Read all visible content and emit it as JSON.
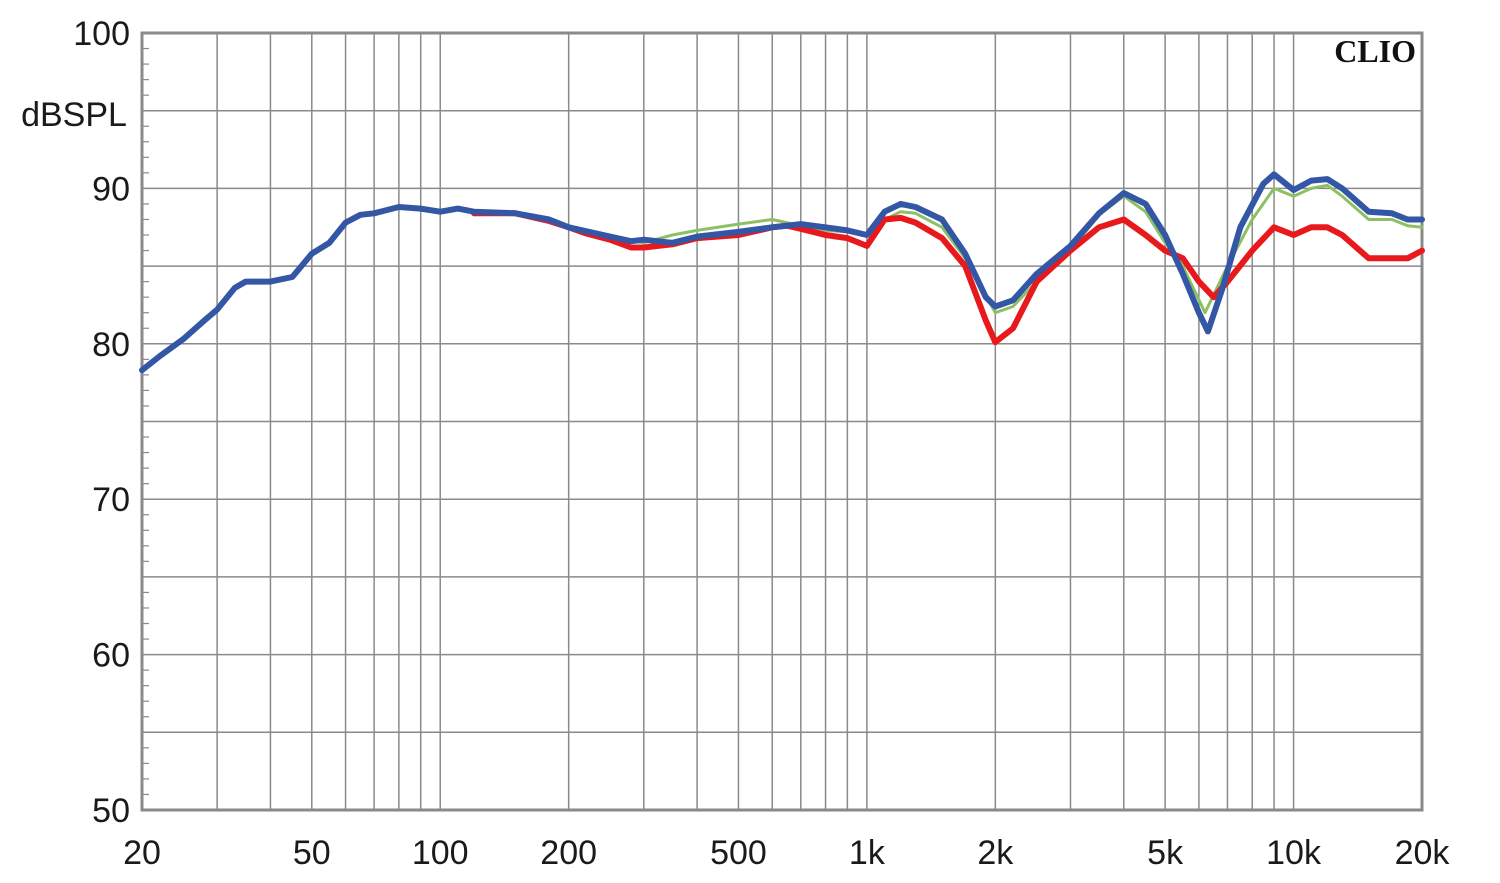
{
  "chart_data": {
    "type": "line",
    "title": "",
    "brand_label": "CLIO",
    "xlabel": "",
    "ylabel": "dBSPL",
    "x_scale": "log",
    "xlim": [
      20,
      20000
    ],
    "ylim": [
      50,
      100
    ],
    "grid": true,
    "legend": "none",
    "x_ticks": [
      {
        "value": 20,
        "label": "20"
      },
      {
        "value": 50,
        "label": "50"
      },
      {
        "value": 100,
        "label": "100"
      },
      {
        "value": 200,
        "label": "200"
      },
      {
        "value": 500,
        "label": "500"
      },
      {
        "value": 1000,
        "label": "1k"
      },
      {
        "value": 2000,
        "label": "2k"
      },
      {
        "value": 5000,
        "label": "5k"
      },
      {
        "value": 10000,
        "label": "10k"
      },
      {
        "value": 20000,
        "label": "20k"
      }
    ],
    "y_ticks": [
      {
        "value": 100,
        "label": "100"
      },
      {
        "value": 90,
        "label": "90"
      },
      {
        "value": 80,
        "label": "80"
      },
      {
        "value": 70,
        "label": "70"
      },
      {
        "value": 60,
        "label": "60"
      },
      {
        "value": 50,
        "label": "50"
      }
    ],
    "series": [
      {
        "color": "#8dc063",
        "width": 3,
        "points": [
          [
            120,
            88.3
          ],
          [
            150,
            88.4
          ],
          [
            180,
            88.0
          ],
          [
            200,
            87.5
          ],
          [
            250,
            86.9
          ],
          [
            300,
            86.5
          ],
          [
            350,
            87.0
          ],
          [
            400,
            87.3
          ],
          [
            500,
            87.7
          ],
          [
            600,
            88.0
          ],
          [
            700,
            87.6
          ],
          [
            800,
            87.3
          ],
          [
            900,
            87.2
          ],
          [
            1000,
            87.1
          ],
          [
            1100,
            88.0
          ],
          [
            1200,
            88.5
          ],
          [
            1300,
            88.4
          ],
          [
            1500,
            87.5
          ],
          [
            1700,
            85.5
          ],
          [
            2000,
            82.0
          ],
          [
            2200,
            82.4
          ],
          [
            2500,
            84.0
          ],
          [
            3000,
            86.0
          ],
          [
            3500,
            88.3
          ],
          [
            4000,
            89.5
          ],
          [
            4500,
            88.5
          ],
          [
            5000,
            86.5
          ],
          [
            5500,
            85.0
          ],
          [
            6200,
            82.0
          ],
          [
            7000,
            85.0
          ],
          [
            8000,
            88.0
          ],
          [
            9000,
            90.0
          ],
          [
            10000,
            89.5
          ],
          [
            11000,
            90.0
          ],
          [
            12000,
            90.2
          ],
          [
            13000,
            89.5
          ],
          [
            15000,
            88.0
          ],
          [
            17000,
            88.0
          ],
          [
            18500,
            87.6
          ],
          [
            20000,
            87.5
          ]
        ]
      },
      {
        "color": "#e8191d",
        "width": 6,
        "points": [
          [
            120,
            88.4
          ],
          [
            150,
            88.4
          ],
          [
            180,
            87.9
          ],
          [
            200,
            87.5
          ],
          [
            220,
            87.1
          ],
          [
            250,
            86.7
          ],
          [
            280,
            86.2
          ],
          [
            300,
            86.2
          ],
          [
            350,
            86.4
          ],
          [
            400,
            86.8
          ],
          [
            500,
            87.0
          ],
          [
            600,
            87.5
          ],
          [
            650,
            87.6
          ],
          [
            700,
            87.4
          ],
          [
            800,
            87.0
          ],
          [
            900,
            86.8
          ],
          [
            1000,
            86.3
          ],
          [
            1100,
            88.0
          ],
          [
            1200,
            88.1
          ],
          [
            1300,
            87.8
          ],
          [
            1500,
            86.8
          ],
          [
            1700,
            85.0
          ],
          [
            1900,
            81.5
          ],
          [
            2000,
            80.1
          ],
          [
            2200,
            81.0
          ],
          [
            2500,
            84.0
          ],
          [
            3000,
            86.0
          ],
          [
            3500,
            87.5
          ],
          [
            4000,
            88.0
          ],
          [
            4500,
            87.0
          ],
          [
            5000,
            86.0
          ],
          [
            5500,
            85.5
          ],
          [
            6000,
            84.0
          ],
          [
            6500,
            83.0
          ],
          [
            7000,
            84.0
          ],
          [
            8000,
            86.0
          ],
          [
            9000,
            87.5
          ],
          [
            10000,
            87.0
          ],
          [
            11000,
            87.5
          ],
          [
            12000,
            87.5
          ],
          [
            13000,
            87.0
          ],
          [
            15000,
            85.5
          ],
          [
            17000,
            85.5
          ],
          [
            18500,
            85.5
          ],
          [
            20000,
            86.0
          ]
        ]
      },
      {
        "color": "#3457a5",
        "width": 6,
        "points": [
          [
            20,
            78.3
          ],
          [
            22,
            79.2
          ],
          [
            25,
            80.3
          ],
          [
            28,
            81.5
          ],
          [
            30,
            82.2
          ],
          [
            33,
            83.6
          ],
          [
            35,
            84.0
          ],
          [
            40,
            84.0
          ],
          [
            45,
            84.3
          ],
          [
            50,
            85.8
          ],
          [
            55,
            86.5
          ],
          [
            60,
            87.8
          ],
          [
            65,
            88.3
          ],
          [
            70,
            88.4
          ],
          [
            80,
            88.8
          ],
          [
            90,
            88.7
          ],
          [
            100,
            88.5
          ],
          [
            110,
            88.7
          ],
          [
            120,
            88.5
          ],
          [
            150,
            88.4
          ],
          [
            180,
            88.0
          ],
          [
            200,
            87.5
          ],
          [
            250,
            86.9
          ],
          [
            280,
            86.6
          ],
          [
            300,
            86.7
          ],
          [
            350,
            86.5
          ],
          [
            400,
            86.9
          ],
          [
            500,
            87.2
          ],
          [
            600,
            87.5
          ],
          [
            700,
            87.7
          ],
          [
            800,
            87.5
          ],
          [
            900,
            87.3
          ],
          [
            1000,
            87.0
          ],
          [
            1100,
            88.5
          ],
          [
            1200,
            89.0
          ],
          [
            1300,
            88.8
          ],
          [
            1500,
            88.0
          ],
          [
            1700,
            85.8
          ],
          [
            1900,
            83.0
          ],
          [
            2000,
            82.4
          ],
          [
            2200,
            82.8
          ],
          [
            2500,
            84.5
          ],
          [
            3000,
            86.3
          ],
          [
            3500,
            88.4
          ],
          [
            4000,
            89.7
          ],
          [
            4500,
            89.0
          ],
          [
            5000,
            87.0
          ],
          [
            5500,
            84.5
          ],
          [
            6000,
            82.0
          ],
          [
            6300,
            80.8
          ],
          [
            6800,
            83.5
          ],
          [
            7500,
            87.5
          ],
          [
            8500,
            90.3
          ],
          [
            9000,
            90.9
          ],
          [
            10000,
            89.9
          ],
          [
            11000,
            90.5
          ],
          [
            12000,
            90.6
          ],
          [
            13000,
            90.0
          ],
          [
            15000,
            88.5
          ],
          [
            17000,
            88.4
          ],
          [
            18500,
            88.0
          ],
          [
            20000,
            88.0
          ]
        ]
      }
    ]
  }
}
